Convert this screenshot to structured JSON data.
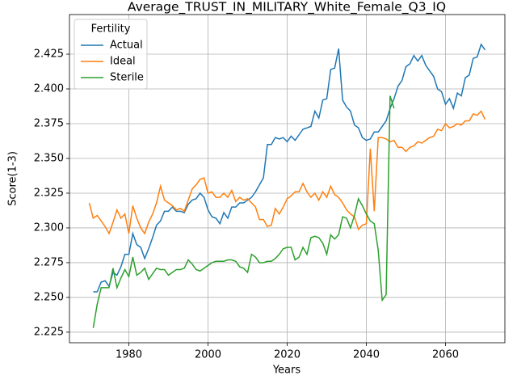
{
  "chart_data": {
    "type": "line",
    "title": "Average_TRUST_IN_MILITARY_White_Female_Q3_IQ",
    "x_label": "Years",
    "y_label": "Score(1-3)",
    "legend_title": "Fertility",
    "legend_loc": "upper left",
    "grid": true,
    "x": [
      1970,
      1971,
      1972,
      1973,
      1974,
      1975,
      1976,
      1977,
      1978,
      1979,
      1980,
      1981,
      1982,
      1983,
      1984,
      1985,
      1986,
      1987,
      1988,
      1989,
      1990,
      1991,
      1992,
      1993,
      1994,
      1995,
      1996,
      1997,
      1998,
      1999,
      2000,
      2001,
      2002,
      2003,
      2004,
      2005,
      2006,
      2007,
      2008,
      2009,
      2010,
      2011,
      2012,
      2013,
      2014,
      2015,
      2016,
      2017,
      2018,
      2019,
      2020,
      2021,
      2022,
      2023,
      2024,
      2025,
      2026,
      2027,
      2028,
      2029,
      2030,
      2031,
      2032,
      2033,
      2034,
      2035,
      2036,
      2037,
      2038,
      2039,
      2040,
      2041,
      2042,
      2043,
      2044,
      2045,
      2046,
      2047,
      2048,
      2049,
      2050,
      2051,
      2052,
      2053,
      2054,
      2055,
      2056,
      2057,
      2058,
      2059,
      2060,
      2061,
      2062,
      2063,
      2064,
      2065,
      2066,
      2067,
      2068,
      2069,
      2070
    ],
    "xlim": [
      1965,
      2075
    ],
    "xticks": [
      1980,
      2000,
      2020,
      2040,
      2060
    ],
    "ylim": [
      2.2174,
      2.4535
    ],
    "yticks": [
      2.225,
      {
        "value": 2.25,
        "label": "2.250"
      },
      2.275,
      {
        "value": 2.3,
        "label": "2.300"
      },
      2.325,
      {
        "value": 2.35,
        "label": "2.350"
      },
      2.375,
      {
        "value": 2.4,
        "label": "2.400"
      },
      2.425
    ],
    "series": [
      {
        "name": "Actual",
        "color": "#1f77b4",
        "values": [
          null,
          2.254,
          2.254,
          2.261,
          2.262,
          2.258,
          2.268,
          2.266,
          2.272,
          2.281,
          2.281,
          2.296,
          2.288,
          2.286,
          2.278,
          2.285,
          2.293,
          2.302,
          2.305,
          2.312,
          2.312,
          2.315,
          2.312,
          2.312,
          2.311,
          2.317,
          2.32,
          2.321,
          2.325,
          2.322,
          2.313,
          2.308,
          2.307,
          2.303,
          2.311,
          2.307,
          2.315,
          2.315,
          2.318,
          2.318,
          2.32,
          2.322,
          2.326,
          2.331,
          2.336,
          2.36,
          2.36,
          2.365,
          2.364,
          2.365,
          2.362,
          2.366,
          2.363,
          2.367,
          2.371,
          2.372,
          2.373,
          2.384,
          2.379,
          2.392,
          2.393,
          2.414,
          2.415,
          2.429,
          2.392,
          2.387,
          2.384,
          2.374,
          2.372,
          2.365,
          2.363,
          2.364,
          2.369,
          2.369,
          2.373,
          2.377,
          2.386,
          2.393,
          2.402,
          2.406,
          2.416,
          2.418,
          2.424,
          2.42,
          2.424,
          2.417,
          2.413,
          2.409,
          2.4,
          2.398,
          2.389,
          2.393,
          2.386,
          2.397,
          2.395,
          2.408,
          2.41,
          2.422,
          2.423,
          2.432,
          2.428
        ]
      },
      {
        "name": "Ideal",
        "color": "#ff7f0e",
        "values": [
          2.318,
          2.307,
          2.309,
          2.305,
          2.301,
          2.296,
          2.304,
          2.313,
          2.307,
          2.31,
          2.296,
          2.316,
          2.307,
          2.3,
          2.296,
          2.304,
          2.31,
          2.318,
          2.33,
          2.32,
          2.318,
          2.316,
          2.313,
          2.314,
          2.312,
          2.32,
          2.328,
          2.331,
          2.335,
          2.336,
          2.325,
          2.326,
          2.322,
          2.322,
          2.325,
          2.322,
          2.327,
          2.319,
          2.322,
          2.32,
          2.321,
          2.318,
          2.315,
          2.306,
          2.306,
          2.301,
          2.302,
          2.314,
          2.31,
          2.315,
          2.321,
          2.323,
          2.326,
          2.326,
          2.332,
          2.326,
          2.322,
          2.325,
          2.32,
          2.326,
          2.322,
          2.33,
          2.324,
          2.322,
          2.318,
          2.313,
          2.31,
          2.308,
          2.299,
          2.302,
          2.303,
          2.357,
          2.312,
          2.365,
          2.365,
          2.364,
          2.362,
          2.363,
          2.358,
          2.358,
          2.355,
          2.358,
          2.359,
          2.362,
          2.361,
          2.363,
          2.365,
          2.366,
          2.371,
          2.37,
          2.375,
          2.372,
          2.373,
          2.375,
          2.374,
          2.377,
          2.377,
          2.382,
          2.381,
          2.384,
          2.378
        ]
      },
      {
        "name": "Sterile",
        "color": "#2ca02c",
        "values": [
          null,
          2.228,
          2.245,
          2.257,
          2.257,
          2.257,
          2.271,
          2.257,
          2.264,
          2.27,
          2.265,
          2.279,
          2.266,
          2.268,
          2.271,
          2.263,
          2.267,
          2.271,
          2.27,
          2.27,
          2.266,
          2.268,
          2.27,
          2.27,
          2.271,
          2.277,
          2.274,
          2.27,
          2.269,
          2.271,
          2.273,
          2.275,
          2.276,
          2.276,
          2.276,
          2.277,
          2.277,
          2.276,
          2.272,
          2.271,
          2.268,
          2.281,
          2.279,
          2.275,
          2.275,
          2.276,
          2.276,
          2.278,
          2.281,
          2.285,
          2.286,
          2.286,
          2.277,
          2.279,
          2.286,
          2.281,
          2.293,
          2.294,
          2.293,
          2.289,
          2.281,
          2.295,
          2.292,
          2.295,
          2.308,
          2.307,
          2.3,
          2.309,
          2.321,
          2.316,
          2.31,
          2.305,
          2.303,
          2.284,
          2.248,
          2.252,
          2.395,
          2.386,
          null,
          null,
          null,
          null,
          null,
          null,
          null,
          null,
          null,
          null,
          null,
          null,
          null,
          null,
          null,
          null,
          null,
          null,
          null,
          null,
          null,
          null,
          null
        ]
      }
    ]
  }
}
